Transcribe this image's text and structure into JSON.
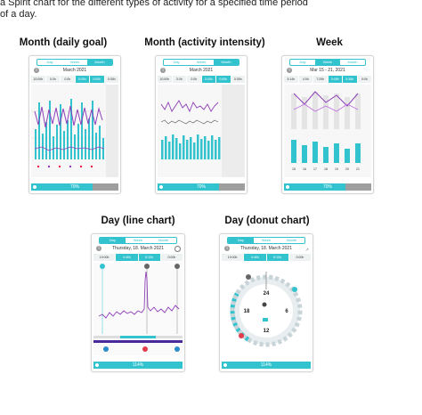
{
  "captions": {
    "top_line": "a Spirit chart for the different types of activity for a specified time period",
    "of_a_day": "of a day."
  },
  "headings": {
    "month_goal": "Month (daily goal)",
    "month_intensity": "Month (activity intensity)",
    "week": "Week",
    "day_line": "Day (line chart)",
    "day_donut": "Day (donut chart)"
  },
  "tabs": {
    "day": "Day",
    "week": "Week",
    "month": "Month"
  },
  "colors": {
    "accent": "#33c3cf",
    "purple": "#8e3fb8",
    "gray": "#9e9e9e"
  },
  "screens": {
    "month_goal": {
      "date": "March 2021",
      "active_tab": "month",
      "metrics": [
        "10:00h",
        "0.0h",
        "0.0h",
        "0:00h",
        "0:00h",
        "0:30h"
      ],
      "progress_label": "70%",
      "progress_value": 0.7
    },
    "month_intensity": {
      "date": "March 2021",
      "active_tab": "month",
      "metrics": [
        "10:00h",
        "3.0h",
        "0.0h",
        "0:00h",
        "0:00h",
        "0:30h"
      ],
      "progress_label": "70%",
      "progress_value": 0.7
    },
    "week": {
      "date": "Mar 15 - 21, 2021",
      "active_tab": "week",
      "metrics": [
        "3:14h",
        "4.9h",
        "7:29h",
        "0:49h",
        "5:38h",
        "0:0h"
      ],
      "x_labels": [
        "15",
        "16",
        "17",
        "18",
        "19",
        "20",
        "21"
      ],
      "progress_label": "70%",
      "progress_value": 0.7
    },
    "day_line": {
      "date": "Thursday, 18. March 2021",
      "active_tab": "day",
      "metrics": [
        "10:00h",
        "4:46h",
        "6:10h",
        "0:00h"
      ],
      "progress_label": "114%",
      "progress_value": 1.0
    },
    "day_donut": {
      "date": "Thursday, 18. March 2021",
      "active_tab": "day",
      "metrics": [
        "10:00h",
        "4:46h",
        "6:10h",
        "0:00h"
      ],
      "dial_labels": [
        "24",
        "18",
        "6",
        "12"
      ],
      "progress_label": "114%",
      "progress_value": 1.0
    }
  }
}
